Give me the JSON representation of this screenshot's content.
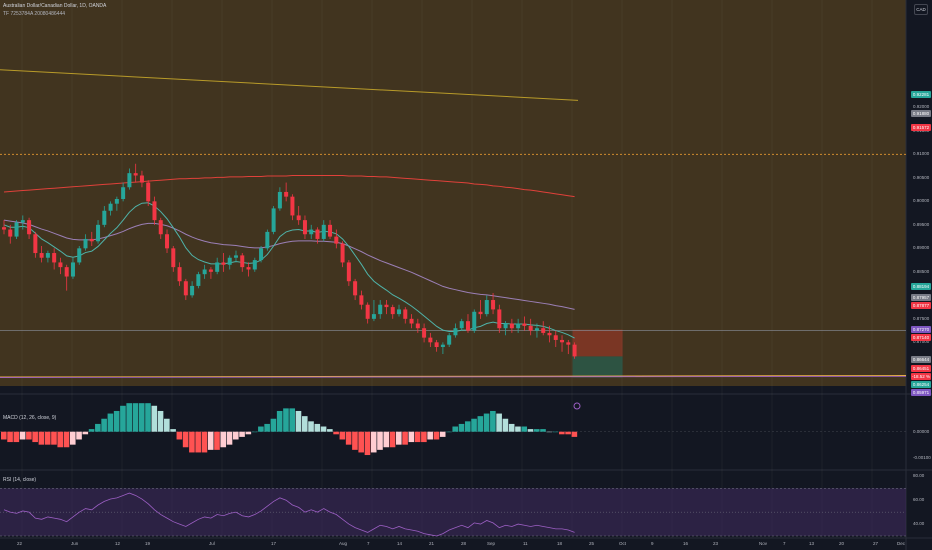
{
  "header": {
    "title": "Australian Dollar/Canadian Dollar, 1D, OANDA",
    "subtitle": "TF 7253784A 20080486444",
    "currency": "CAD"
  },
  "colors": {
    "background": "#131722",
    "zone_fill": "#4a3a1e",
    "bull": "#26a69a",
    "bear": "#f23645",
    "ema_fast": "#4fb3a9",
    "ema_slow": "#9b7fb6",
    "ema_200": "#e0413a",
    "ema_long": "#b89b29",
    "hline": "#d08a2e",
    "rsi_band": "#3d2a5c",
    "rsi_line": "#9c5fc4"
  },
  "price_axis": {
    "ticks": [
      "0.92000",
      "0.91500",
      "0.91000",
      "0.90500",
      "0.90000",
      "0.89500",
      "0.89000",
      "0.88500",
      "0.87500",
      "0.87000"
    ],
    "badges": [
      {
        "text": "0.92281",
        "color": "#26a69a"
      },
      {
        "text": "0.91880",
        "color": "#787b86"
      },
      {
        "text": "0.91572",
        "color": "#f23645"
      },
      {
        "text": "0.88194",
        "color": "#26a69a"
      },
      {
        "text": "0.87957",
        "color": "#787b86"
      },
      {
        "text": "0.87877",
        "color": "#f23645"
      },
      {
        "text": "0.87270",
        "color": "#7e57c2"
      },
      {
        "text": "0.87140",
        "color": "#f23645"
      },
      {
        "text": "0.86644",
        "color": "#787b86"
      },
      {
        "text": "0.86451",
        "color": "#f23645"
      },
      {
        "text": "-18.52 %",
        "color": "#f23645"
      },
      {
        "text": "0.86254",
        "color": "#26a69a"
      },
      {
        "text": "0.85971",
        "color": "#7e57c2"
      }
    ]
  },
  "macd": {
    "legend": "MACD (12, 26, close, 9)",
    "ticks": [
      "0.00000",
      "-0.00100"
    ]
  },
  "rsi": {
    "legend": "RSI (14, close)",
    "ticks": [
      "80.00",
      "60.00",
      "40.00"
    ]
  },
  "time_axis": [
    "22",
    "Jun",
    "12",
    "19",
    "Jul",
    "17",
    "Aug",
    "7",
    "14",
    "21",
    "28",
    "Sep",
    "11",
    "18",
    "25",
    "Oct",
    "9",
    "16",
    "23",
    "Nov",
    "7",
    "13",
    "20",
    "27",
    "Dec"
  ],
  "chart_data": {
    "type": "candlestick",
    "symbol": "AUDCAD",
    "timeframe": "1D",
    "candles": [
      [
        0.8945,
        0.896,
        0.893,
        0.894
      ],
      [
        0.894,
        0.895,
        0.891,
        0.8925
      ],
      [
        0.8925,
        0.896,
        0.892,
        0.8955
      ],
      [
        0.8955,
        0.897,
        0.894,
        0.896
      ],
      [
        0.896,
        0.8965,
        0.892,
        0.893
      ],
      [
        0.893,
        0.8935,
        0.888,
        0.889
      ],
      [
        0.889,
        0.8905,
        0.887,
        0.888
      ],
      [
        0.888,
        0.8895,
        0.887,
        0.889
      ],
      [
        0.889,
        0.89,
        0.8855,
        0.887
      ],
      [
        0.887,
        0.888,
        0.8845,
        0.886
      ],
      [
        0.886,
        0.8865,
        0.881,
        0.884
      ],
      [
        0.884,
        0.888,
        0.8835,
        0.887
      ],
      [
        0.887,
        0.8905,
        0.8865,
        0.89
      ],
      [
        0.89,
        0.893,
        0.8895,
        0.892
      ],
      [
        0.892,
        0.8935,
        0.8905,
        0.8915
      ],
      [
        0.8915,
        0.896,
        0.891,
        0.895
      ],
      [
        0.895,
        0.899,
        0.8945,
        0.898
      ],
      [
        0.898,
        0.9,
        0.897,
        0.8995
      ],
      [
        0.8995,
        0.901,
        0.898,
        0.9005
      ],
      [
        0.9005,
        0.904,
        0.9,
        0.903
      ],
      [
        0.903,
        0.907,
        0.9025,
        0.906
      ],
      [
        0.906,
        0.908,
        0.904,
        0.9055
      ],
      [
        0.9055,
        0.9065,
        0.903,
        0.904
      ],
      [
        0.904,
        0.9045,
        0.899,
        0.9
      ],
      [
        0.9,
        0.901,
        0.895,
        0.896
      ],
      [
        0.896,
        0.8965,
        0.892,
        0.893
      ],
      [
        0.893,
        0.894,
        0.889,
        0.89
      ],
      [
        0.89,
        0.8905,
        0.885,
        0.886
      ],
      [
        0.886,
        0.887,
        0.882,
        0.883
      ],
      [
        0.883,
        0.8835,
        0.879,
        0.88
      ],
      [
        0.88,
        0.883,
        0.8795,
        0.882
      ],
      [
        0.882,
        0.885,
        0.8815,
        0.8845
      ],
      [
        0.8845,
        0.8865,
        0.8835,
        0.8855
      ],
      [
        0.8855,
        0.886,
        0.8835,
        0.885
      ],
      [
        0.885,
        0.888,
        0.8845,
        0.887
      ],
      [
        0.887,
        0.889,
        0.885,
        0.8865
      ],
      [
        0.8865,
        0.8885,
        0.8855,
        0.888
      ],
      [
        0.888,
        0.8895,
        0.887,
        0.8885
      ],
      [
        0.8885,
        0.889,
        0.885,
        0.886
      ],
      [
        0.886,
        0.887,
        0.884,
        0.8855
      ],
      [
        0.8855,
        0.888,
        0.885,
        0.8875
      ],
      [
        0.8875,
        0.8905,
        0.887,
        0.89
      ],
      [
        0.89,
        0.894,
        0.8895,
        0.8935
      ],
      [
        0.8935,
        0.899,
        0.893,
        0.8985
      ],
      [
        0.8985,
        0.903,
        0.898,
        0.902
      ],
      [
        0.902,
        0.904,
        0.9,
        0.901
      ],
      [
        0.901,
        0.9015,
        0.896,
        0.897
      ],
      [
        0.897,
        0.899,
        0.895,
        0.896
      ],
      [
        0.896,
        0.897,
        0.892,
        0.893
      ],
      [
        0.893,
        0.895,
        0.892,
        0.894
      ],
      [
        0.894,
        0.8945,
        0.891,
        0.892
      ],
      [
        0.892,
        0.896,
        0.8915,
        0.895
      ],
      [
        0.895,
        0.896,
        0.892,
        0.8925
      ],
      [
        0.8925,
        0.894,
        0.89,
        0.891
      ],
      [
        0.891,
        0.8915,
        0.886,
        0.887
      ],
      [
        0.887,
        0.8875,
        0.882,
        0.883
      ],
      [
        0.883,
        0.8835,
        0.879,
        0.88
      ],
      [
        0.88,
        0.881,
        0.877,
        0.878
      ],
      [
        0.878,
        0.8785,
        0.874,
        0.875
      ],
      [
        0.875,
        0.879,
        0.8745,
        0.876
      ],
      [
        0.876,
        0.879,
        0.875,
        0.878
      ],
      [
        0.878,
        0.879,
        0.876,
        0.8775
      ],
      [
        0.8775,
        0.878,
        0.875,
        0.876
      ],
      [
        0.876,
        0.878,
        0.8755,
        0.877
      ],
      [
        0.877,
        0.8775,
        0.874,
        0.875
      ],
      [
        0.875,
        0.876,
        0.873,
        0.874
      ],
      [
        0.874,
        0.875,
        0.872,
        0.873
      ],
      [
        0.873,
        0.874,
        0.87,
        0.871
      ],
      [
        0.871,
        0.872,
        0.869,
        0.87
      ],
      [
        0.87,
        0.8705,
        0.868,
        0.869
      ],
      [
        0.869,
        0.87,
        0.8675,
        0.8695
      ],
      [
        0.8695,
        0.872,
        0.869,
        0.8715
      ],
      [
        0.8715,
        0.874,
        0.871,
        0.873
      ],
      [
        0.873,
        0.875,
        0.8725,
        0.8745
      ],
      [
        0.8745,
        0.876,
        0.872,
        0.8725
      ],
      [
        0.8725,
        0.877,
        0.872,
        0.8765
      ],
      [
        0.8765,
        0.879,
        0.875,
        0.876
      ],
      [
        0.876,
        0.88,
        0.8755,
        0.879
      ],
      [
        0.879,
        0.8805,
        0.876,
        0.877
      ],
      [
        0.877,
        0.878,
        0.872,
        0.873
      ],
      [
        0.873,
        0.8745,
        0.8715,
        0.874
      ],
      [
        0.874,
        0.875,
        0.872,
        0.873
      ],
      [
        0.873,
        0.875,
        0.872,
        0.874
      ],
      [
        0.874,
        0.8755,
        0.8725,
        0.8735
      ],
      [
        0.8735,
        0.875,
        0.8715,
        0.8725
      ],
      [
        0.8725,
        0.874,
        0.871,
        0.873
      ],
      [
        0.873,
        0.8745,
        0.8715,
        0.872
      ],
      [
        0.872,
        0.8735,
        0.87,
        0.8715
      ],
      [
        0.8715,
        0.8725,
        0.869,
        0.8705
      ],
      [
        0.8705,
        0.8715,
        0.868,
        0.87
      ],
      [
        0.87,
        0.8705,
        0.8675,
        0.8695
      ],
      [
        0.8695,
        0.87,
        0.8665,
        0.867
      ]
    ],
    "ema_fast": [
      0.895,
      0.8945,
      0.8945,
      0.8947,
      0.8944,
      0.8932,
      0.892,
      0.8912,
      0.8903,
      0.8894,
      0.8884,
      0.8881,
      0.8884,
      0.8891,
      0.8894,
      0.8904,
      0.8918,
      0.8932,
      0.8944,
      0.896,
      0.8977,
      0.8989,
      0.8996,
      0.8997,
      0.899,
      0.8978,
      0.8963,
      0.8944,
      0.8924,
      0.8901,
      0.8885,
      0.8876,
      0.8871,
      0.8867,
      0.8867,
      0.8867,
      0.8869,
      0.8872,
      0.887,
      0.8868,
      0.8869,
      0.8875,
      0.8887,
      0.8905,
      0.8925,
      0.8935,
      0.8939,
      0.894,
      0.8937,
      0.8937,
      0.8934,
      0.8936,
      0.8935,
      0.8931,
      0.892,
      0.8904,
      0.8885,
      0.8866,
      0.8845,
      0.883,
      0.882,
      0.8811,
      0.8801,
      0.8794,
      0.8786,
      0.8777,
      0.8767,
      0.8756,
      0.8745,
      0.8734,
      0.8726,
      0.8723,
      0.8723,
      0.8726,
      0.8726,
      0.8731,
      0.8734,
      0.874,
      0.8743,
      0.874,
      0.874,
      0.8739,
      0.8739,
      0.8739,
      0.8737,
      0.8736,
      0.8734,
      0.873,
      0.8725,
      0.8721,
      0.8716,
      0.8709
    ],
    "ema_slow": [
      0.896,
      0.8958,
      0.8956,
      0.8954,
      0.8951,
      0.8946,
      0.8941,
      0.8937,
      0.8932,
      0.8927,
      0.8922,
      0.8919,
      0.8918,
      0.8918,
      0.8918,
      0.892,
      0.8923,
      0.8927,
      0.8931,
      0.8936,
      0.8942,
      0.8947,
      0.8951,
      0.8953,
      0.8953,
      0.8951,
      0.8948,
      0.8943,
      0.8937,
      0.893,
      0.8924,
      0.8919,
      0.8915,
      0.8912,
      0.891,
      0.8908,
      0.8907,
      0.8906,
      0.8904,
      0.8902,
      0.8901,
      0.8901,
      0.8903,
      0.8906,
      0.891,
      0.8913,
      0.8915,
      0.8916,
      0.8916,
      0.8916,
      0.8915,
      0.8915,
      0.8914,
      0.8913,
      0.891,
      0.8905,
      0.8899,
      0.8893,
      0.8886,
      0.888,
      0.8874,
      0.8869,
      0.8864,
      0.8859,
      0.8854,
      0.8849,
      0.8843,
      0.8837,
      0.8831,
      0.8825,
      0.8819,
      0.8815,
      0.8812,
      0.8809,
      0.8806,
      0.8804,
      0.8802,
      0.8801,
      0.8799,
      0.8797,
      0.8795,
      0.8793,
      0.8791,
      0.8789,
      0.8787,
      0.8785,
      0.8783,
      0.8781,
      0.8778,
      0.8776,
      0.8773,
      0.877
    ],
    "ema_200": [
      0.902,
      0.9021,
      0.9022,
      0.9023,
      0.9024,
      0.9025,
      0.9026,
      0.9027,
      0.9028,
      0.9029,
      0.903,
      0.9031,
      0.9032,
      0.9033,
      0.9034,
      0.9035,
      0.9036,
      0.9037,
      0.9038,
      0.9039,
      0.904,
      0.9041,
      0.9042,
      0.9043,
      0.9044,
      0.9045,
      0.9046,
      0.9047,
      0.9048,
      0.9048,
      0.9049,
      0.9049,
      0.905,
      0.905,
      0.9051,
      0.9051,
      0.9052,
      0.9052,
      0.9052,
      0.9053,
      0.9053,
      0.9053,
      0.9054,
      0.9054,
      0.9054,
      0.9054,
      0.9055,
      0.9055,
      0.9055,
      0.9055,
      0.9055,
      0.9055,
      0.9055,
      0.9055,
      0.9055,
      0.9054,
      0.9054,
      0.9054,
      0.9053,
      0.9053,
      0.9052,
      0.9052,
      0.9051,
      0.905,
      0.9049,
      0.9048,
      0.9047,
      0.9046,
      0.9045,
      0.9044,
      0.9043,
      0.9042,
      0.9041,
      0.904,
      0.9039,
      0.9037,
      0.9036,
      0.9035,
      0.9033,
      0.9032,
      0.903,
      0.9029,
      0.9027,
      0.9025,
      0.9024,
      0.9022,
      0.902,
      0.9018,
      0.9016,
      0.9014,
      0.9012,
      0.901
    ],
    "ema_long_start": 0.928,
    "ema_long_end": 0.9215,
    "hline_dotted": 0.91,
    "hline_solid": 0.8725,
    "support_line": 0.8625,
    "position": {
      "entry": 0.867,
      "stop": 0.8727,
      "target": 0.8625
    },
    "macd_hist": [
      -0.0003,
      -0.0004,
      -0.0004,
      -0.0003,
      -0.0003,
      -0.0004,
      -0.0005,
      -0.0005,
      -0.0005,
      -0.0006,
      -0.0006,
      -0.0005,
      -0.0003,
      -0.0001,
      0.0001,
      0.0003,
      0.0005,
      0.0007,
      0.0008,
      0.001,
      0.0011,
      0.0011,
      0.0011,
      0.0011,
      0.001,
      0.0008,
      0.0005,
      0.0001,
      -0.0003,
      -0.0006,
      -0.0008,
      -0.0008,
      -0.0008,
      -0.0007,
      -0.0007,
      -0.0006,
      -0.0005,
      -0.0003,
      -0.0002,
      -0.0001,
      0.0,
      0.0002,
      0.0003,
      0.0005,
      0.0008,
      0.0009,
      0.0009,
      0.0008,
      0.0006,
      0.0004,
      0.0003,
      0.0002,
      0.0001,
      -0.0001,
      -0.0003,
      -0.0005,
      -0.0007,
      -0.0008,
      -0.0009,
      -0.0008,
      -0.0007,
      -0.0006,
      -0.0006,
      -0.0005,
      -0.0005,
      -0.0004,
      -0.0004,
      -0.0004,
      -0.0003,
      -0.0003,
      -0.0002,
      0.0,
      0.0002,
      0.0003,
      0.0004,
      0.0005,
      0.0006,
      0.0007,
      0.0008,
      0.0007,
      0.0005,
      0.0003,
      0.0002,
      0.0002,
      0.0001,
      0.0001,
      0.0001,
      0.0,
      0.0,
      -0.0001,
      -0.0001,
      -0.0002
    ],
    "rsi": [
      52,
      50,
      49,
      51,
      50,
      45,
      44,
      46,
      45,
      44,
      42,
      46,
      50,
      53,
      52,
      56,
      59,
      61,
      62,
      64,
      66,
      64,
      61,
      57,
      52,
      48,
      45,
      42,
      40,
      38,
      41,
      44,
      46,
      45,
      48,
      47,
      49,
      50,
      47,
      46,
      48,
      51,
      55,
      59,
      62,
      60,
      56,
      54,
      50,
      52,
      50,
      53,
      50,
      48,
      44,
      40,
      37,
      35,
      33,
      36,
      39,
      38,
      36,
      38,
      36,
      35,
      34,
      32,
      31,
      30,
      32,
      35,
      37,
      39,
      37,
      41,
      40,
      43,
      41,
      37,
      39,
      38,
      40,
      39,
      38,
      39,
      38,
      37,
      36,
      36,
      35,
      33
    ],
    "price_range": [
      0.859,
      0.942
    ],
    "macd_range": [
      -0.0014,
      0.0013
    ],
    "rsi_range": [
      30,
      82
    ]
  }
}
